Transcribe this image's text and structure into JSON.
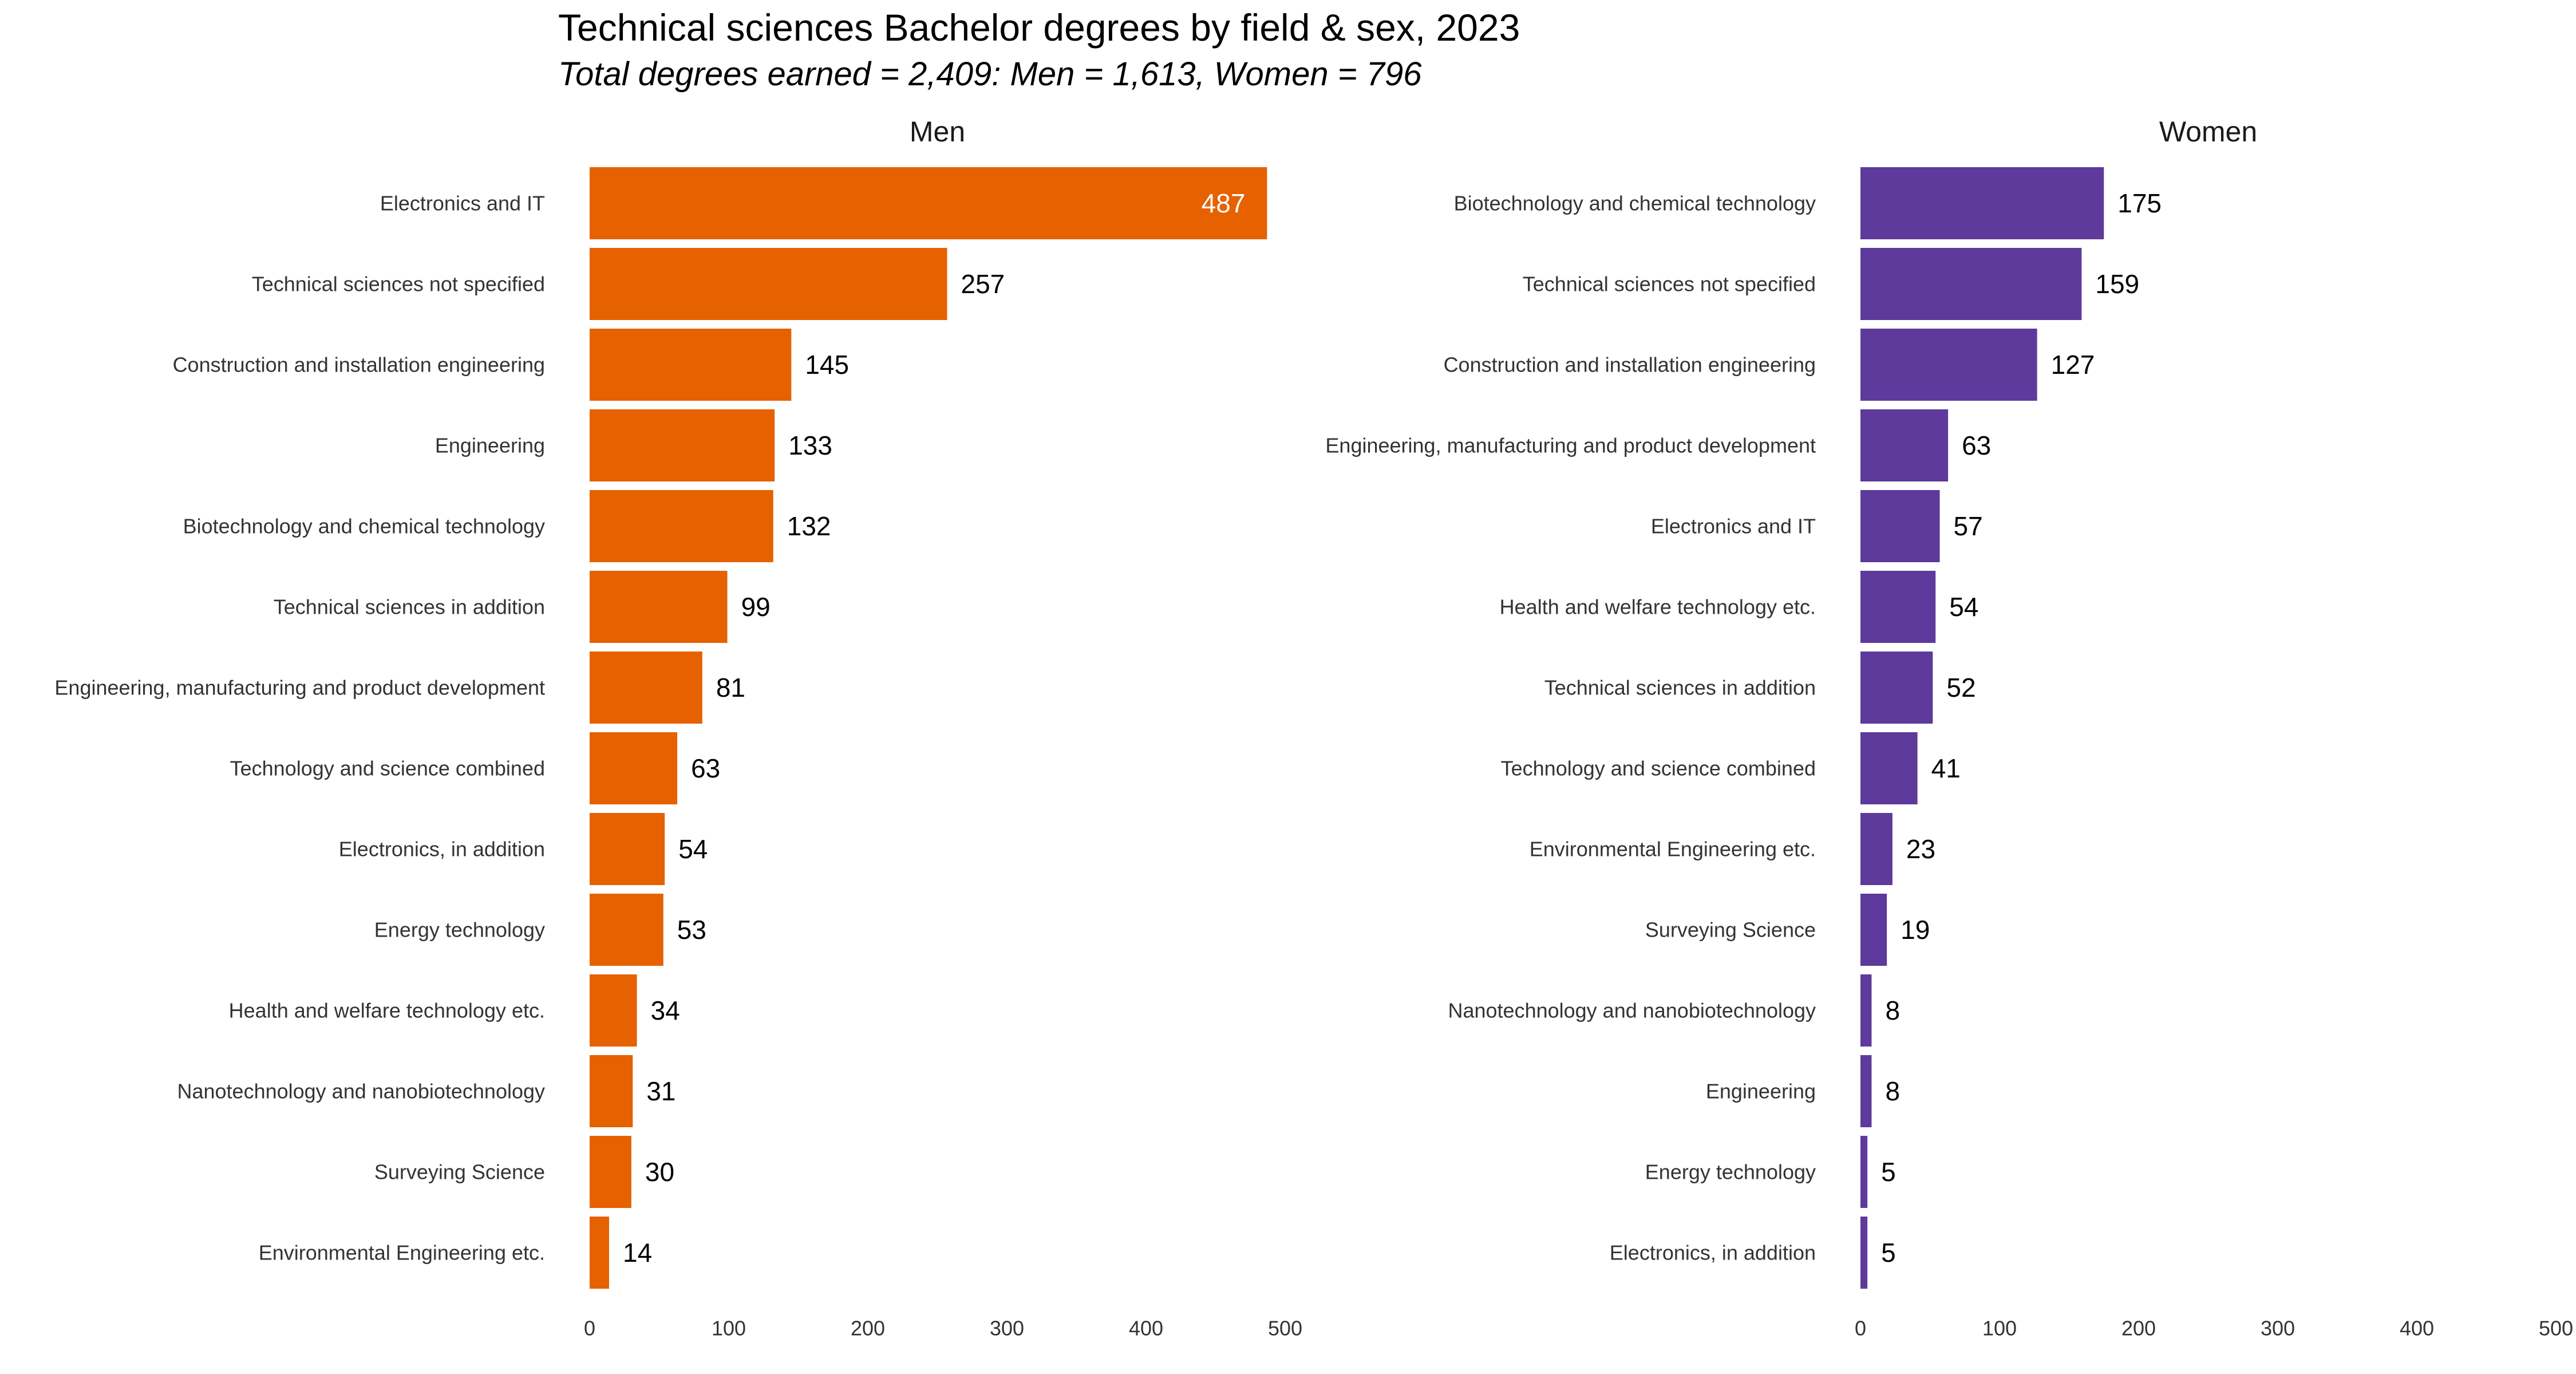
{
  "title": "Technical sciences Bachelor degrees by field & sex, 2023",
  "subtitle": "Total degrees earned = 2,409: Men = 1,613, Women = 796",
  "chart_data": [
    {
      "type": "bar",
      "orientation": "horizontal",
      "panel": "Men",
      "title": "Men",
      "color": "#E66100",
      "categories": [
        "Electronics and IT",
        "Technical sciences not specified",
        "Construction and installation engineering",
        "Engineering",
        "Biotechnology and chemical technology",
        "Technical sciences in addition",
        "Engineering, manufacturing and product development",
        "Technology and science combined",
        "Electronics, in addition",
        "Energy technology",
        "Health and welfare technology etc.",
        "Nanotechnology and nanobiotechnology",
        "Surveying Science",
        "Environmental Engineering etc."
      ],
      "values": [
        487,
        257,
        145,
        133,
        132,
        99,
        81,
        63,
        54,
        53,
        34,
        31,
        30,
        14
      ],
      "xlim": [
        0,
        500
      ],
      "xticks": [
        0,
        100,
        200,
        300,
        400,
        500
      ],
      "grid": false
    },
    {
      "type": "bar",
      "orientation": "horizontal",
      "panel": "Women",
      "title": "Women",
      "color": "#5D3A9B",
      "categories": [
        "Biotechnology and chemical technology",
        "Technical sciences not specified",
        "Construction and installation engineering",
        "Engineering, manufacturing and product development",
        "Electronics and IT",
        "Health and welfare technology etc.",
        "Technical sciences in addition",
        "Technology and science combined",
        "Environmental Engineering etc.",
        "Surveying Science",
        "Nanotechnology and nanobiotechnology",
        "Engineering",
        "Energy technology",
        "Electronics, in addition"
      ],
      "values": [
        175,
        159,
        127,
        63,
        57,
        54,
        52,
        41,
        23,
        19,
        8,
        8,
        5,
        5
      ],
      "xlim": [
        0,
        500
      ],
      "xticks": [
        0,
        100,
        200,
        300,
        400,
        500
      ],
      "grid": false
    }
  ]
}
